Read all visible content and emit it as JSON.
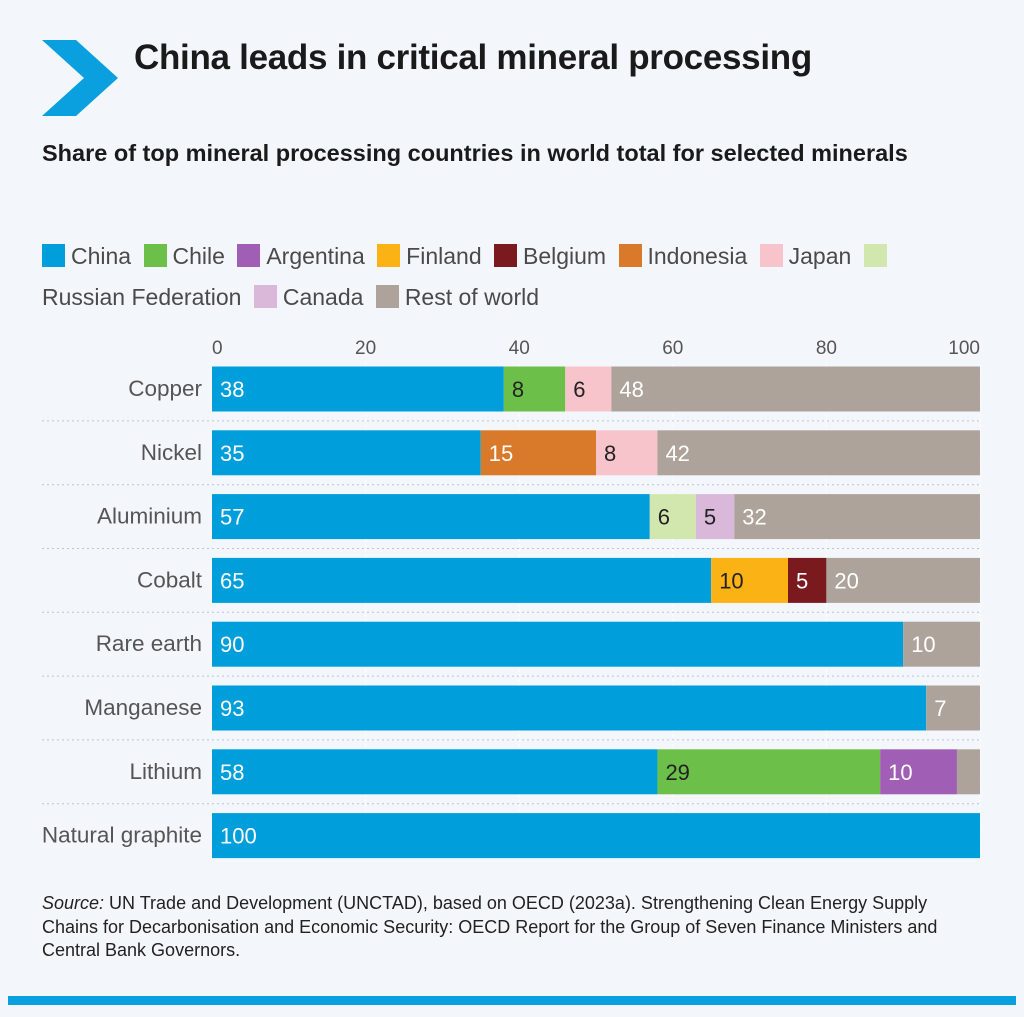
{
  "title": "China leads in critical mineral processing",
  "subtitle": "Share of top mineral processing countries in world total for selected minerals",
  "legend": [
    {
      "label": "China",
      "color": "#009edb"
    },
    {
      "label": "Chile",
      "color": "#6cc04a"
    },
    {
      "label": "Argentina",
      "color": "#a05eb5"
    },
    {
      "label": "Finland",
      "color": "#fbb214"
    },
    {
      "label": "Belgium",
      "color": "#7a1a1e"
    },
    {
      "label": "Indonesia",
      "color": "#d97a2b"
    },
    {
      "label": "Japan",
      "color": "#f7c4cc"
    },
    {
      "label": "Russian Federation",
      "color": "#d2e7ae"
    },
    {
      "label": "Canada",
      "color": "#d9b8da"
    },
    {
      "label": "Rest of world",
      "color": "#aea39b"
    }
  ],
  "chart_data": {
    "type": "bar",
    "orientation": "horizontal",
    "stacked": true,
    "categories": [
      "Copper",
      "Nickel",
      "Aluminium",
      "Cobalt",
      "Rare earth",
      "Manganese",
      "Lithium",
      "Natural graphite"
    ],
    "series": [
      {
        "name": "China",
        "values": [
          38,
          35,
          57,
          65,
          90,
          93,
          58,
          100
        ]
      },
      {
        "name": "Chile",
        "values": [
          8,
          0,
          0,
          0,
          0,
          0,
          29,
          0
        ]
      },
      {
        "name": "Argentina",
        "values": [
          0,
          0,
          0,
          0,
          0,
          0,
          10,
          0
        ]
      },
      {
        "name": "Finland",
        "values": [
          0,
          0,
          0,
          10,
          0,
          0,
          0,
          0
        ]
      },
      {
        "name": "Belgium",
        "values": [
          0,
          0,
          0,
          5,
          0,
          0,
          0,
          0
        ]
      },
      {
        "name": "Indonesia",
        "values": [
          0,
          15,
          0,
          0,
          0,
          0,
          0,
          0
        ]
      },
      {
        "name": "Japan",
        "values": [
          6,
          8,
          0,
          0,
          0,
          0,
          0,
          0
        ]
      },
      {
        "name": "Russian Federation",
        "values": [
          0,
          0,
          6,
          0,
          0,
          0,
          0,
          0
        ]
      },
      {
        "name": "Canada",
        "values": [
          0,
          0,
          5,
          0,
          0,
          0,
          0,
          0
        ]
      },
      {
        "name": "Rest of world",
        "values": [
          48,
          42,
          32,
          20,
          10,
          7,
          3,
          0
        ]
      }
    ],
    "segments": [
      [
        {
          "series": "China",
          "value": 38,
          "label": "38"
        },
        {
          "series": "Chile",
          "value": 8,
          "label": "8"
        },
        {
          "series": "Japan",
          "value": 6,
          "label": "6"
        },
        {
          "series": "Rest of world",
          "value": 48,
          "label": "48"
        }
      ],
      [
        {
          "series": "China",
          "value": 35,
          "label": "35"
        },
        {
          "series": "Indonesia",
          "value": 15,
          "label": "15"
        },
        {
          "series": "Japan",
          "value": 8,
          "label": "8"
        },
        {
          "series": "Rest of world",
          "value": 42,
          "label": "42"
        }
      ],
      [
        {
          "series": "China",
          "value": 57,
          "label": "57"
        },
        {
          "series": "Russian Federation",
          "value": 6,
          "label": "6"
        },
        {
          "series": "Canada",
          "value": 5,
          "label": "5"
        },
        {
          "series": "Rest of world",
          "value": 32,
          "label": "32"
        }
      ],
      [
        {
          "series": "China",
          "value": 65,
          "label": "65"
        },
        {
          "series": "Finland",
          "value": 10,
          "label": "10"
        },
        {
          "series": "Belgium",
          "value": 5,
          "label": "5"
        },
        {
          "series": "Rest of world",
          "value": 20,
          "label": "20"
        }
      ],
      [
        {
          "series": "China",
          "value": 90,
          "label": "90"
        },
        {
          "series": "Rest of world",
          "value": 10,
          "label": "10"
        }
      ],
      [
        {
          "series": "China",
          "value": 93,
          "label": "93"
        },
        {
          "series": "Rest of world",
          "value": 7,
          "label": "7"
        }
      ],
      [
        {
          "series": "China",
          "value": 58,
          "label": "58"
        },
        {
          "series": "Chile",
          "value": 29,
          "label": "29"
        },
        {
          "series": "Argentina",
          "value": 10,
          "label": "10"
        },
        {
          "series": "Rest of world",
          "value": 3,
          "label": ""
        }
      ],
      [
        {
          "series": "China",
          "value": 100,
          "label": "100"
        }
      ]
    ],
    "xlim": [
      0,
      100
    ],
    "xticks": [
      0,
      20,
      40,
      60,
      80,
      100
    ],
    "xlabel": "",
    "ylabel": "",
    "grid": true,
    "legend_position": "top"
  },
  "source": {
    "prefix": "Source:",
    "text": " UN Trade and Development (UNCTAD), based on OECD (2023a). Strengthening Clean Energy Supply Chains for Decarbonisation and Economic Security: OECD Report for the Group of Seven Finance Ministers and Central Bank Governors."
  },
  "colors": {
    "accent": "#0aa0e0",
    "background": "#f3f7fc"
  },
  "icons": {
    "header": "chevron-right-icon"
  }
}
